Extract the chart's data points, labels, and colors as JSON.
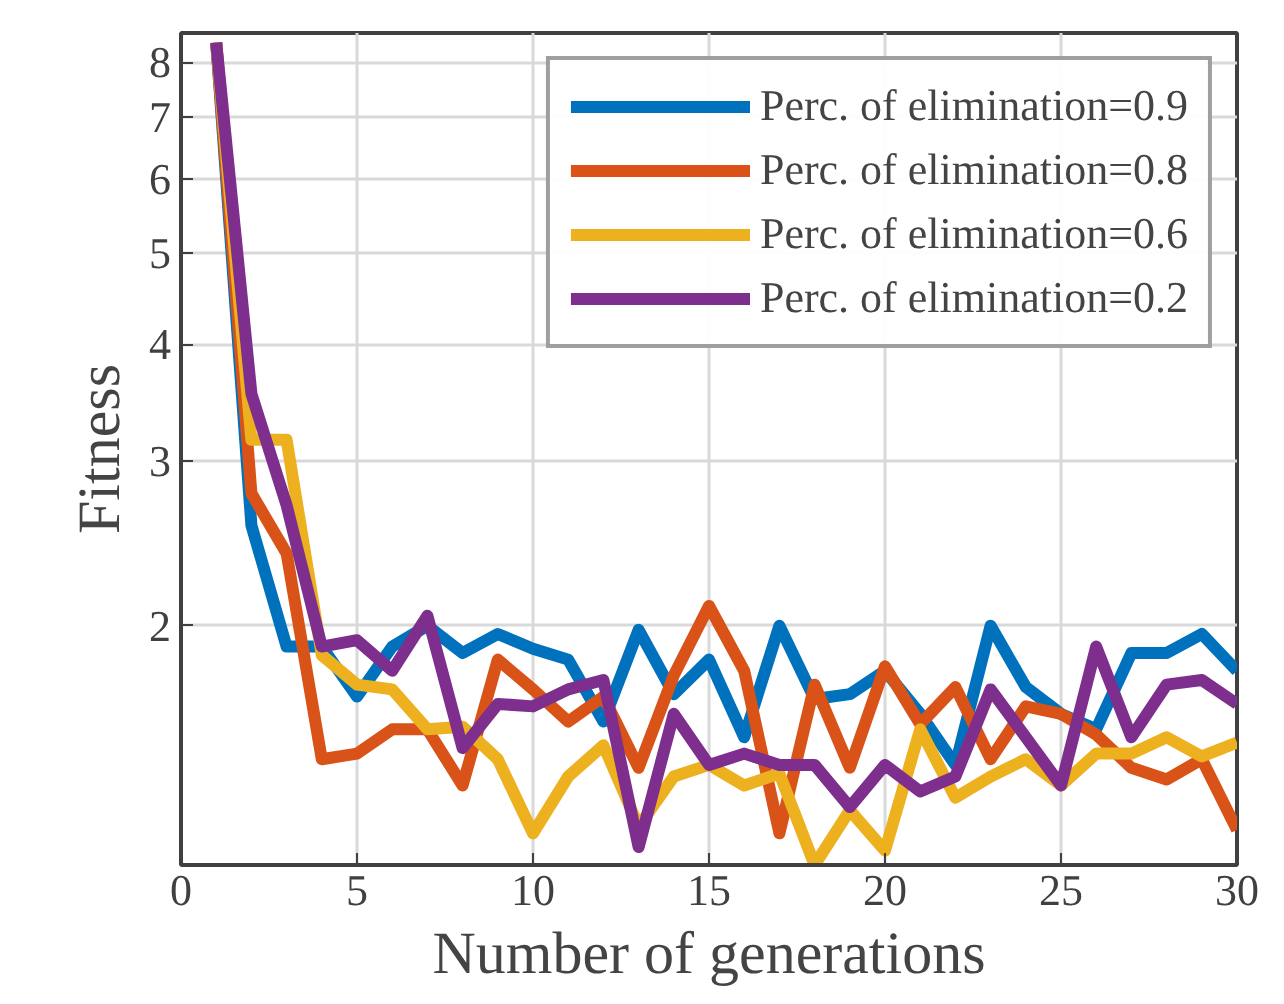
{
  "chart_data": {
    "type": "line",
    "xlabel": "Number of generations",
    "ylabel": "Fitness",
    "log": "y",
    "grid": true,
    "legend": "top right",
    "line_style": "solid",
    "xlim": [
      0,
      30
    ],
    "xticks": [
      0,
      5,
      10,
      15,
      20,
      25,
      30
    ],
    "ylim": [
      1.11,
      8.6
    ],
    "yticks": [
      2,
      3,
      4,
      5,
      6,
      7,
      8
    ],
    "x": [
      1,
      2,
      3,
      4,
      5,
      6,
      7,
      8,
      9,
      10,
      11,
      12,
      13,
      14,
      15,
      16,
      17,
      18,
      19,
      20,
      21,
      22,
      23,
      24,
      25,
      26,
      27,
      28,
      29,
      30
    ],
    "series": [
      {
        "name": "Perc. of elimination=0.9",
        "color": "#0072bd",
        "values": [
          8.4,
          2.56,
          1.9,
          1.9,
          1.68,
          1.9,
          2.0,
          1.87,
          1.96,
          1.89,
          1.84,
          1.58,
          1.98,
          1.69,
          1.84,
          1.52,
          2.0,
          1.67,
          1.69,
          1.79,
          1.61,
          1.42,
          2.0,
          1.72,
          1.61,
          1.55,
          1.87,
          1.87,
          1.96,
          1.79
        ]
      },
      {
        "name": "Perc. of elimination=0.8",
        "color": "#d95319",
        "values": [
          8.4,
          2.77,
          2.39,
          1.44,
          1.46,
          1.55,
          1.55,
          1.35,
          1.84,
          1.71,
          1.58,
          1.68,
          1.41,
          1.77,
          2.1,
          1.79,
          1.2,
          1.73,
          1.41,
          1.81,
          1.57,
          1.72,
          1.44,
          1.64,
          1.61,
          1.53,
          1.41,
          1.37,
          1.44,
          1.21
        ]
      },
      {
        "name": "Perc. of elimination=0.6",
        "color": "#edb120",
        "values": [
          8.4,
          3.16,
          3.16,
          1.86,
          1.73,
          1.71,
          1.55,
          1.56,
          1.44,
          1.2,
          1.38,
          1.49,
          1.22,
          1.38,
          1.42,
          1.35,
          1.39,
          1.11,
          1.27,
          1.15,
          1.55,
          1.31,
          1.38,
          1.44,
          1.35,
          1.46,
          1.46,
          1.52,
          1.45,
          1.5
        ]
      },
      {
        "name": "Perc. of elimination=0.2",
        "color": "#7e2f8e",
        "values": [
          8.4,
          3.54,
          2.69,
          1.9,
          1.93,
          1.79,
          2.05,
          1.48,
          1.65,
          1.64,
          1.71,
          1.75,
          1.16,
          1.61,
          1.42,
          1.46,
          1.42,
          1.42,
          1.28,
          1.42,
          1.33,
          1.38,
          1.71,
          1.52,
          1.35,
          1.9,
          1.52,
          1.73,
          1.75,
          1.65
        ]
      }
    ]
  }
}
